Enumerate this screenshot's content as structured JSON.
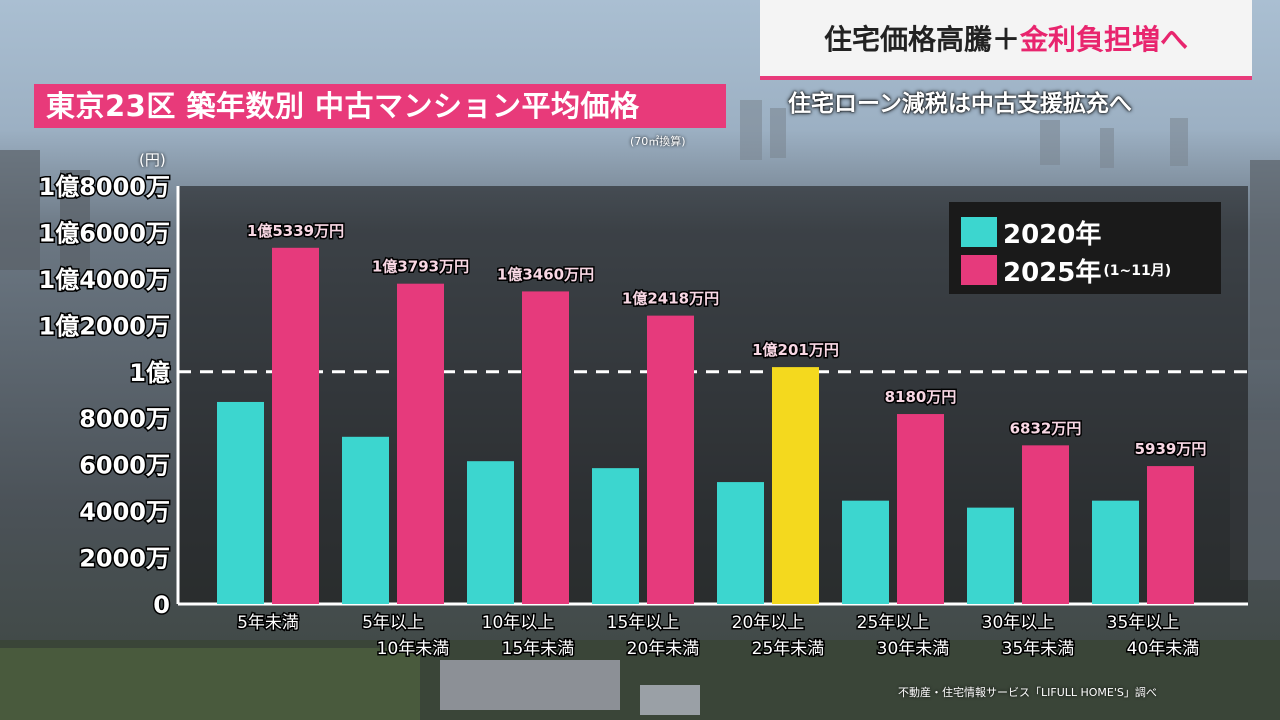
{
  "header": {
    "title": "東京23区 築年数別 中古マンション平均価格",
    "title_note": "(70㎡換算)",
    "headline_part1": "住宅価格高騰＋",
    "headline_part2": "金利負担増へ",
    "subheadline": "住宅ローン減税は中古支援拡充へ"
  },
  "footer": {
    "source": "不動産・住宅情報サービス「LIFULL HOME'S」調べ"
  },
  "colors": {
    "series_2020": "#3cd6cf",
    "series_2025": "#e63a7c",
    "highlight": "#f4d91e",
    "title_bg": "#e83a7a"
  },
  "chart_data": {
    "type": "bar",
    "y_unit": "(円)",
    "ylim": [
      0,
      180000000
    ],
    "y_ticks": [
      {
        "value": 0,
        "label": "0"
      },
      {
        "value": 20000000,
        "label": "2000万"
      },
      {
        "value": 40000000,
        "label": "4000万"
      },
      {
        "value": 60000000,
        "label": "6000万"
      },
      {
        "value": 80000000,
        "label": "8000万"
      },
      {
        "value": 100000000,
        "label": "1億"
      },
      {
        "value": 120000000,
        "label": "1億2000万"
      },
      {
        "value": 140000000,
        "label": "1億4000万"
      },
      {
        "value": 160000000,
        "label": "1億6000万"
      },
      {
        "value": 180000000,
        "label": "1億8000万"
      }
    ],
    "reference_line": 100000000,
    "categories": [
      [
        "5年未満"
      ],
      [
        "5年以上",
        "10年未満"
      ],
      [
        "10年以上",
        "15年未満"
      ],
      [
        "15年以上",
        "20年未満"
      ],
      [
        "20年以上",
        "25年未満"
      ],
      [
        "25年以上",
        "30年未満"
      ],
      [
        "30年以上",
        "35年未満"
      ],
      [
        "35年以上",
        "40年未満"
      ]
    ],
    "series": [
      {
        "name": "2020年",
        "values": [
          87000000,
          72000000,
          61500000,
          58500000,
          52500000,
          44500000,
          41500000,
          44500000
        ]
      },
      {
        "name": "2025年",
        "note": "(1~11月)",
        "values": [
          153390000,
          137930000,
          134600000,
          124180000,
          102010000,
          81800000,
          68320000,
          59390000
        ],
        "labels": [
          "1億5339万円",
          "1億3793万円",
          "1億3460万円",
          "1億2418万円",
          "1億201万円",
          "8180万円",
          "6832万円",
          "5939万円"
        ]
      }
    ],
    "grid": false,
    "legend_position": "top-right"
  }
}
